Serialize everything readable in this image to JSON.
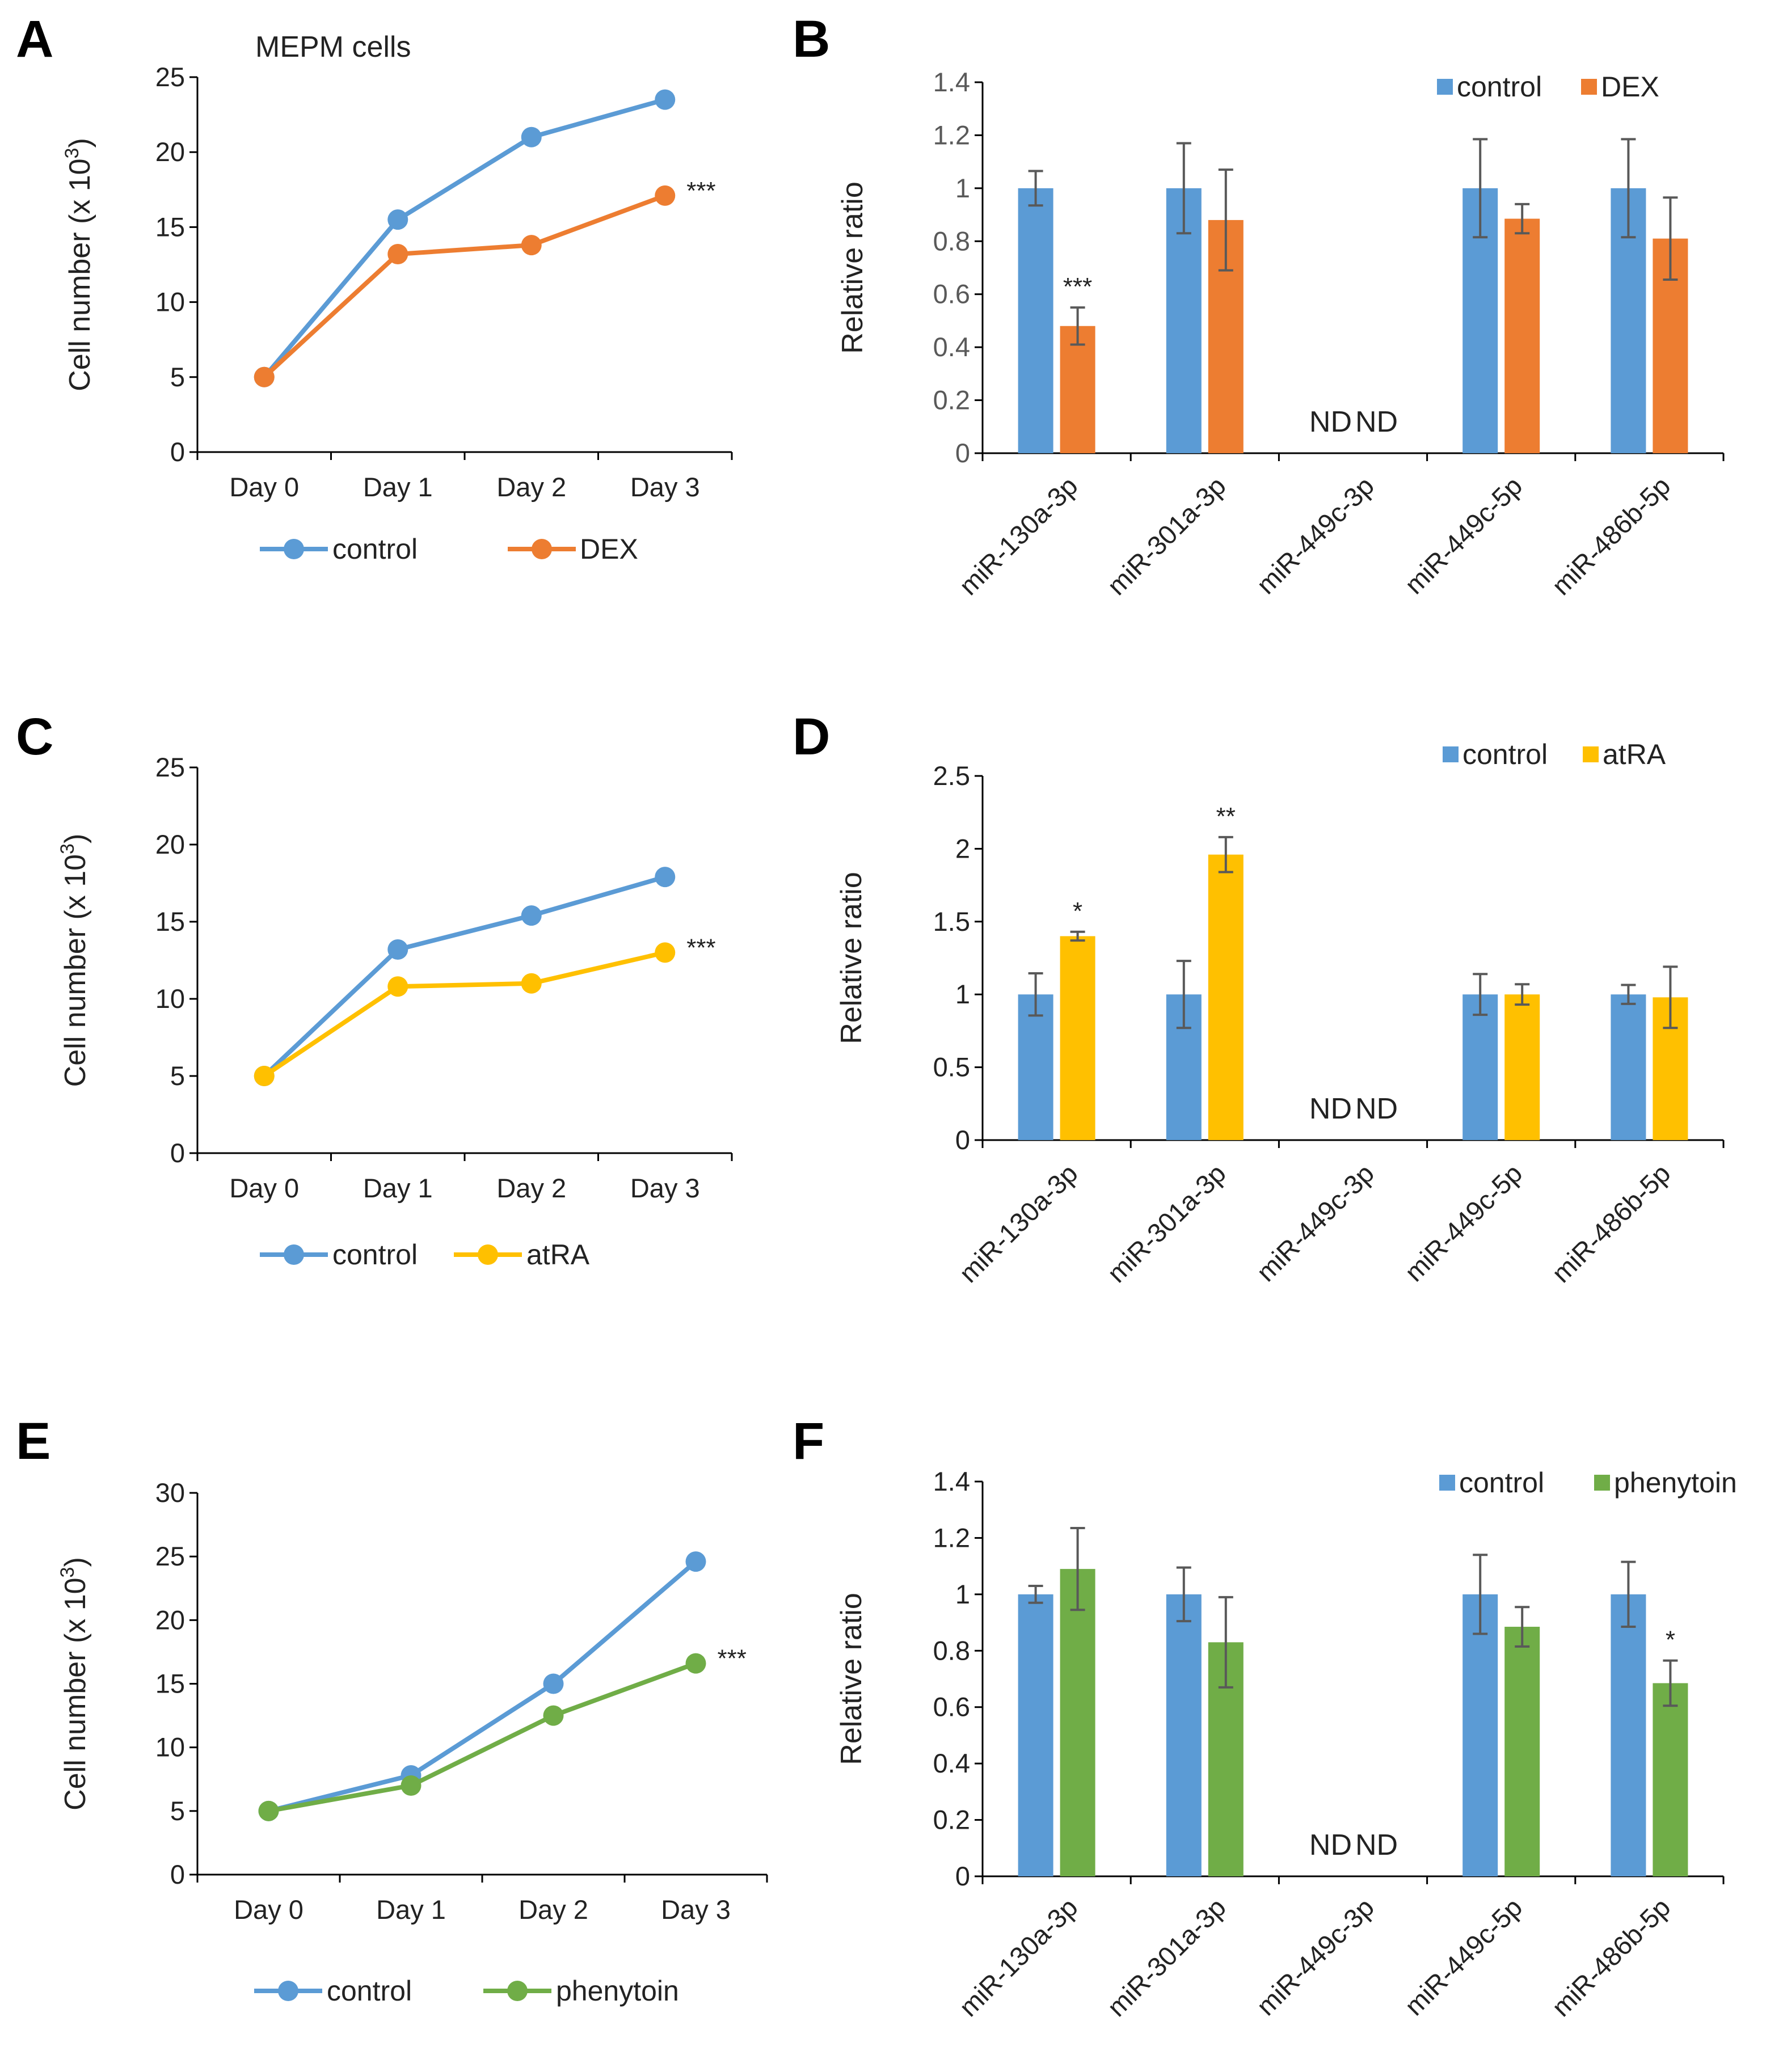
{
  "figure_title": "MEPM cells",
  "colors": {
    "control": "#5B9BD5",
    "DEX": "#ED7D31",
    "atRA": "#FFC000",
    "phenytoin": "#70AD47",
    "errorbar": "#595959"
  },
  "chart_data": [
    {
      "id": "A",
      "panel": "A",
      "type": "line",
      "title": "MEPM cells",
      "categories": [
        "Day 0",
        "Day 1",
        "Day 2",
        "Day 3"
      ],
      "ylabel": "Cell number (x 10",
      "ylabel_sup": "3",
      "ylabel_end": ")",
      "ylim": [
        0,
        25
      ],
      "yticks": [
        "0",
        "5",
        "10",
        "15",
        "20",
        "25"
      ],
      "series": [
        {
          "name": "control",
          "color": "#5B9BD5",
          "values": [
            5,
            15.5,
            21,
            23.5
          ]
        },
        {
          "name": "DEX",
          "color": "#ED7D31",
          "values": [
            5,
            13.2,
            13.8,
            17.1
          ]
        }
      ],
      "annotation": "***"
    },
    {
      "id": "B",
      "panel": "B",
      "type": "bar",
      "categories": [
        "miR-130a-3p",
        "miR-301a-3p",
        "miR-449c-3p",
        "miR-449c-5p",
        "miR-486b-5p"
      ],
      "ylabel": "Relative ratio",
      "ylim": [
        0,
        1.4
      ],
      "yticks": [
        "0",
        "0.2",
        "0.4",
        "0.6",
        "0.8",
        "1",
        "1.2",
        "1.4"
      ],
      "series": [
        {
          "name": "control",
          "color": "#5B9BD5",
          "values": [
            1,
            1,
            null,
            1,
            1
          ],
          "errors": [
            0.065,
            0.17,
            null,
            0.185,
            0.185
          ]
        },
        {
          "name": "DEX",
          "color": "#ED7D31",
          "values": [
            0.48,
            0.88,
            null,
            0.885,
            0.81
          ],
          "errors": [
            0.07,
            0.19,
            null,
            0.055,
            0.155
          ]
        }
      ],
      "annotations": [
        {
          "category": 0,
          "series": 1,
          "text": "***"
        }
      ],
      "nd_labels": [
        "ND",
        "ND"
      ]
    },
    {
      "id": "C",
      "panel": "C",
      "type": "line",
      "categories": [
        "Day 0",
        "Day 1",
        "Day 2",
        "Day 3"
      ],
      "ylabel": "Cell number (x 10",
      "ylabel_sup": "3",
      "ylabel_end": ")",
      "ylim": [
        0,
        25
      ],
      "yticks": [
        "0",
        "5",
        "10",
        "15",
        "20",
        "25"
      ],
      "series": [
        {
          "name": "control",
          "color": "#5B9BD5",
          "values": [
            5,
            13.2,
            15.4,
            17.9
          ]
        },
        {
          "name": "atRA",
          "color": "#FFC000",
          "values": [
            5,
            10.8,
            11,
            13
          ]
        }
      ],
      "annotation": "***"
    },
    {
      "id": "D",
      "panel": "D",
      "type": "bar",
      "categories": [
        "miR-130a-3p",
        "miR-301a-3p",
        "miR-449c-3p",
        "miR-449c-5p",
        "miR-486b-5p"
      ],
      "ylabel": "Relative ratio",
      "ylim": [
        0,
        2.5
      ],
      "yticks": [
        "0",
        "0.5",
        "1",
        "1.5",
        "2",
        "2.5"
      ],
      "series": [
        {
          "name": "control",
          "color": "#5B9BD5",
          "values": [
            1,
            1,
            null,
            1,
            1
          ],
          "errors": [
            0.145,
            0.23,
            null,
            0.14,
            0.065
          ]
        },
        {
          "name": "atRA",
          "color": "#FFC000",
          "values": [
            1.4,
            1.96,
            null,
            1.0,
            0.98
          ],
          "errors": [
            0.03,
            0.12,
            null,
            0.07,
            0.21
          ]
        }
      ],
      "annotations": [
        {
          "category": 0,
          "series": 1,
          "text": "*"
        },
        {
          "category": 1,
          "series": 1,
          "text": "**"
        }
      ],
      "nd_labels": [
        "ND",
        "ND"
      ]
    },
    {
      "id": "E",
      "panel": "E",
      "type": "line",
      "categories": [
        "Day 0",
        "Day 1",
        "Day 2",
        "Day 3"
      ],
      "ylabel": "Cell number (x 10",
      "ylabel_sup": "3",
      "ylabel_end": ")",
      "ylim": [
        0,
        30
      ],
      "yticks": [
        "0",
        "5",
        "10",
        "15",
        "20",
        "25",
        "30"
      ],
      "series": [
        {
          "name": "control",
          "color": "#5B9BD5",
          "values": [
            5,
            7.8,
            15,
            24.6
          ]
        },
        {
          "name": "phenytoin",
          "color": "#70AD47",
          "values": [
            5,
            7,
            12.5,
            16.6
          ]
        }
      ],
      "annotation": "***"
    },
    {
      "id": "F",
      "panel": "F",
      "type": "bar",
      "categories": [
        "miR-130a-3p",
        "miR-301a-3p",
        "miR-449c-3p",
        "miR-449c-5p",
        "miR-486b-5p"
      ],
      "ylabel": "Relative ratio",
      "ylim": [
        0,
        1.4
      ],
      "yticks": [
        "0",
        "0.2",
        "0.4",
        "0.6",
        "0.8",
        "1",
        "1.2",
        "1.4"
      ],
      "series": [
        {
          "name": "control",
          "color": "#5B9BD5",
          "values": [
            1,
            1,
            null,
            1,
            1
          ],
          "errors": [
            0.03,
            0.095,
            null,
            0.14,
            0.115
          ]
        },
        {
          "name": "phenytoin",
          "color": "#70AD47",
          "values": [
            1.09,
            0.83,
            null,
            0.885,
            0.685
          ],
          "errors": [
            0.145,
            0.16,
            null,
            0.07,
            0.08
          ]
        }
      ],
      "annotations": [
        {
          "category": 4,
          "series": 1,
          "text": "*"
        }
      ],
      "nd_labels": [
        "ND",
        "ND"
      ]
    }
  ]
}
